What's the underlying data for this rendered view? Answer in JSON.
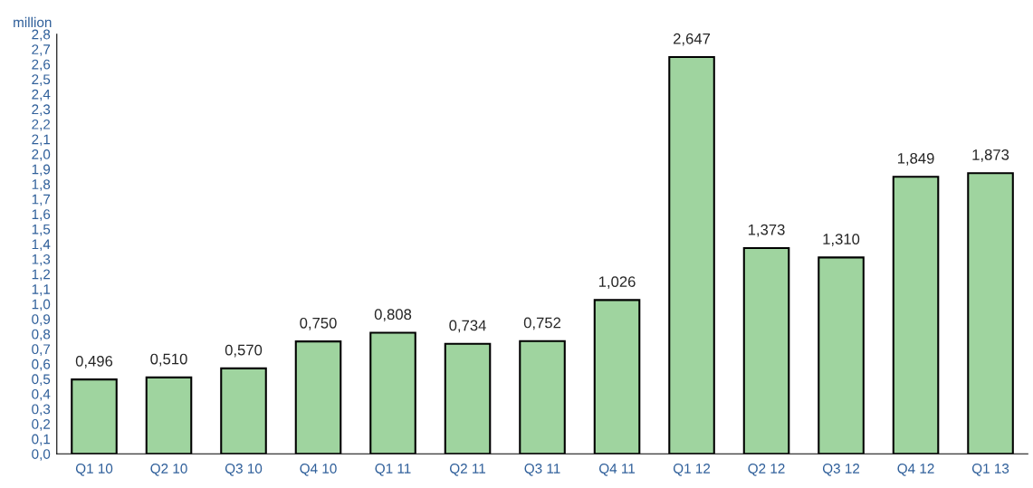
{
  "chart_data": {
    "type": "bar",
    "ylabel": "million",
    "categories": [
      "Q1 10",
      "Q2 10",
      "Q3 10",
      "Q4 10",
      "Q1 11",
      "Q2 11",
      "Q3 11",
      "Q4 11",
      "Q1 12",
      "Q2 12",
      "Q3 12",
      "Q4 12",
      "Q1 13"
    ],
    "values": [
      0.496,
      0.51,
      0.57,
      0.75,
      0.808,
      0.734,
      0.752,
      1.026,
      2.647,
      1.373,
      1.31,
      1.849,
      1.873
    ],
    "value_labels": [
      "0,496",
      "0,510",
      "0,570",
      "0,750",
      "0,808",
      "0,734",
      "0,752",
      "1,026",
      "2,647",
      "1,373",
      "1,310",
      "1,849",
      "1,873"
    ],
    "color": "#9fd49f",
    "ylim": [
      0,
      2.8
    ],
    "yticks": [
      {
        "value": 0,
        "label": "0,0"
      },
      {
        "value": 0.1,
        "label": "0,1"
      },
      {
        "value": 0.2,
        "label": "0,2"
      },
      {
        "value": 0.3,
        "label": "0,3"
      },
      {
        "value": 0.4,
        "label": "0,4"
      },
      {
        "value": 0.5,
        "label": "0,5"
      },
      {
        "value": 0.6,
        "label": "0,6"
      },
      {
        "value": 0.7,
        "label": "0,7"
      },
      {
        "value": 0.8,
        "label": "0,8"
      },
      {
        "value": 0.9,
        "label": "0,9"
      },
      {
        "value": 1.0,
        "label": "1,0"
      },
      {
        "value": 1.1,
        "label": "1,1"
      },
      {
        "value": 1.2,
        "label": "1,2"
      },
      {
        "value": 1.3,
        "label": "1,3"
      },
      {
        "value": 1.4,
        "label": "1,4"
      },
      {
        "value": 1.5,
        "label": "1,5"
      },
      {
        "value": 1.6,
        "label": "1,6"
      },
      {
        "value": 1.7,
        "label": "1,7"
      },
      {
        "value": 1.8,
        "label": "1,8"
      },
      {
        "value": 1.9,
        "label": "1,9"
      },
      {
        "value": 2.0,
        "label": "2,0"
      },
      {
        "value": 2.1,
        "label": "2,1"
      },
      {
        "value": 2.2,
        "label": "2,2"
      },
      {
        "value": 2.3,
        "label": "2,3"
      },
      {
        "value": 2.4,
        "label": "2,4"
      },
      {
        "value": 2.5,
        "label": "2,5"
      },
      {
        "value": 2.6,
        "label": "2,6"
      },
      {
        "value": 2.7,
        "label": "2,7"
      },
      {
        "value": 2.8,
        "label": "2,8"
      }
    ],
    "grid": false,
    "legend": false
  }
}
